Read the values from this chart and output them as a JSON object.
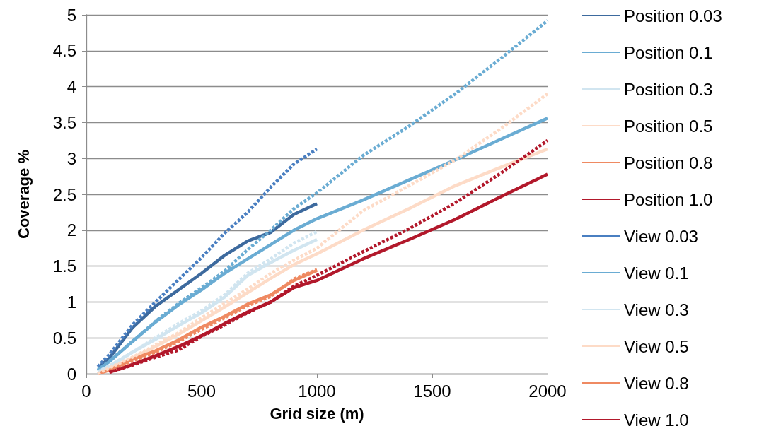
{
  "chart_data": {
    "type": "line",
    "xlabel": "Grid size (m)",
    "ylabel": "Coverage %",
    "x": [
      50,
      100,
      200,
      300,
      400,
      500,
      600,
      700,
      800,
      900,
      1000,
      1200,
      1400,
      1600,
      1800,
      2000
    ],
    "xlim": [
      0,
      2000
    ],
    "xticks": [
      0,
      500,
      1000,
      1500,
      2000
    ],
    "ylim": [
      0,
      5
    ],
    "yticks": [
      0,
      0.5,
      1,
      1.5,
      2,
      2.5,
      3,
      3.5,
      4,
      4.5,
      5
    ],
    "grid": "y",
    "legend": "right",
    "marker": "none",
    "series": [
      {
        "name": "Position 0.03",
        "color": "#3d6a9e",
        "line_style": "solid",
        "values": [
          0.08,
          0.22,
          0.64,
          0.94,
          1.17,
          1.4,
          1.65,
          1.85,
          1.97,
          2.22,
          2.37,
          null,
          null,
          null,
          null,
          null
        ]
      },
      {
        "name": "Position 0.1",
        "color": "#6aacd3",
        "line_style": "solid",
        "values": [
          0.05,
          0.17,
          0.45,
          0.72,
          0.96,
          1.17,
          1.4,
          1.6,
          1.8,
          2.0,
          2.16,
          2.42,
          2.7,
          2.98,
          3.27,
          3.56
        ]
      },
      {
        "name": "Position 0.3",
        "color": "#d1e5f0",
        "line_style": "solid",
        "values": [
          0.03,
          0.1,
          0.3,
          0.48,
          0.67,
          0.85,
          1.07,
          1.37,
          1.55,
          1.72,
          1.87,
          null,
          null,
          null,
          null,
          null
        ]
      },
      {
        "name": "Position 0.5",
        "color": "#fddbc7",
        "line_style": "solid",
        "values": [
          0.0,
          0.07,
          0.22,
          0.38,
          0.55,
          0.74,
          0.93,
          1.13,
          1.33,
          1.52,
          1.67,
          2.0,
          2.3,
          2.62,
          2.88,
          3.13
        ]
      },
      {
        "name": "Position 0.8",
        "color": "#ef8a62",
        "line_style": "solid",
        "values": [
          0.0,
          0.05,
          0.2,
          0.32,
          0.47,
          0.65,
          0.8,
          0.97,
          1.1,
          1.3,
          1.44,
          null,
          null,
          null,
          null,
          null
        ]
      },
      {
        "name": "Position 1.0",
        "color": "#b2182b",
        "line_style": "solid",
        "values": [
          null,
          0.02,
          0.13,
          0.25,
          0.38,
          0.53,
          0.7,
          0.86,
          1.0,
          1.2,
          1.3,
          1.6,
          1.87,
          2.15,
          2.47,
          2.78
        ]
      },
      {
        "name": "View 0.03",
        "color": "#4a7fc1",
        "line_style": "dashed",
        "values": [
          0.1,
          0.27,
          0.68,
          1.0,
          1.31,
          1.62,
          1.96,
          2.25,
          2.6,
          2.92,
          3.13,
          null,
          null,
          null,
          null,
          null
        ]
      },
      {
        "name": "View 0.1",
        "color": "#6aacd3",
        "line_style": "dashed",
        "values": [
          0.05,
          0.18,
          0.45,
          0.73,
          0.98,
          1.2,
          1.43,
          1.73,
          2.0,
          2.3,
          2.52,
          3.04,
          3.45,
          3.9,
          4.4,
          4.92
        ]
      },
      {
        "name": "View 0.3",
        "color": "#d1e5f0",
        "line_style": "dashed",
        "values": [
          0.03,
          0.11,
          0.3,
          0.5,
          0.7,
          0.88,
          1.1,
          1.4,
          1.6,
          1.82,
          1.98,
          null,
          null,
          null,
          null,
          null
        ]
      },
      {
        "name": "View 0.5",
        "color": "#fddbc7",
        "line_style": "dashed",
        "values": [
          0.0,
          0.08,
          0.23,
          0.4,
          0.57,
          0.78,
          0.98,
          1.18,
          1.4,
          1.58,
          1.75,
          2.27,
          2.62,
          2.98,
          3.42,
          3.9
        ]
      },
      {
        "name": "View 0.8",
        "color": "#ef8a62",
        "line_style": "dashed",
        "values": [
          null,
          0.04,
          0.18,
          0.3,
          0.45,
          0.62,
          0.78,
          0.95,
          1.08,
          1.32,
          1.45,
          null,
          null,
          null,
          null,
          null
        ]
      },
      {
        "name": "View 1.0",
        "color": "#b2182b",
        "line_style": "dashed",
        "values": [
          null,
          0.02,
          0.12,
          0.23,
          0.33,
          0.52,
          0.68,
          0.85,
          1.0,
          1.22,
          1.37,
          1.7,
          2.02,
          2.38,
          2.8,
          3.25
        ]
      }
    ]
  }
}
